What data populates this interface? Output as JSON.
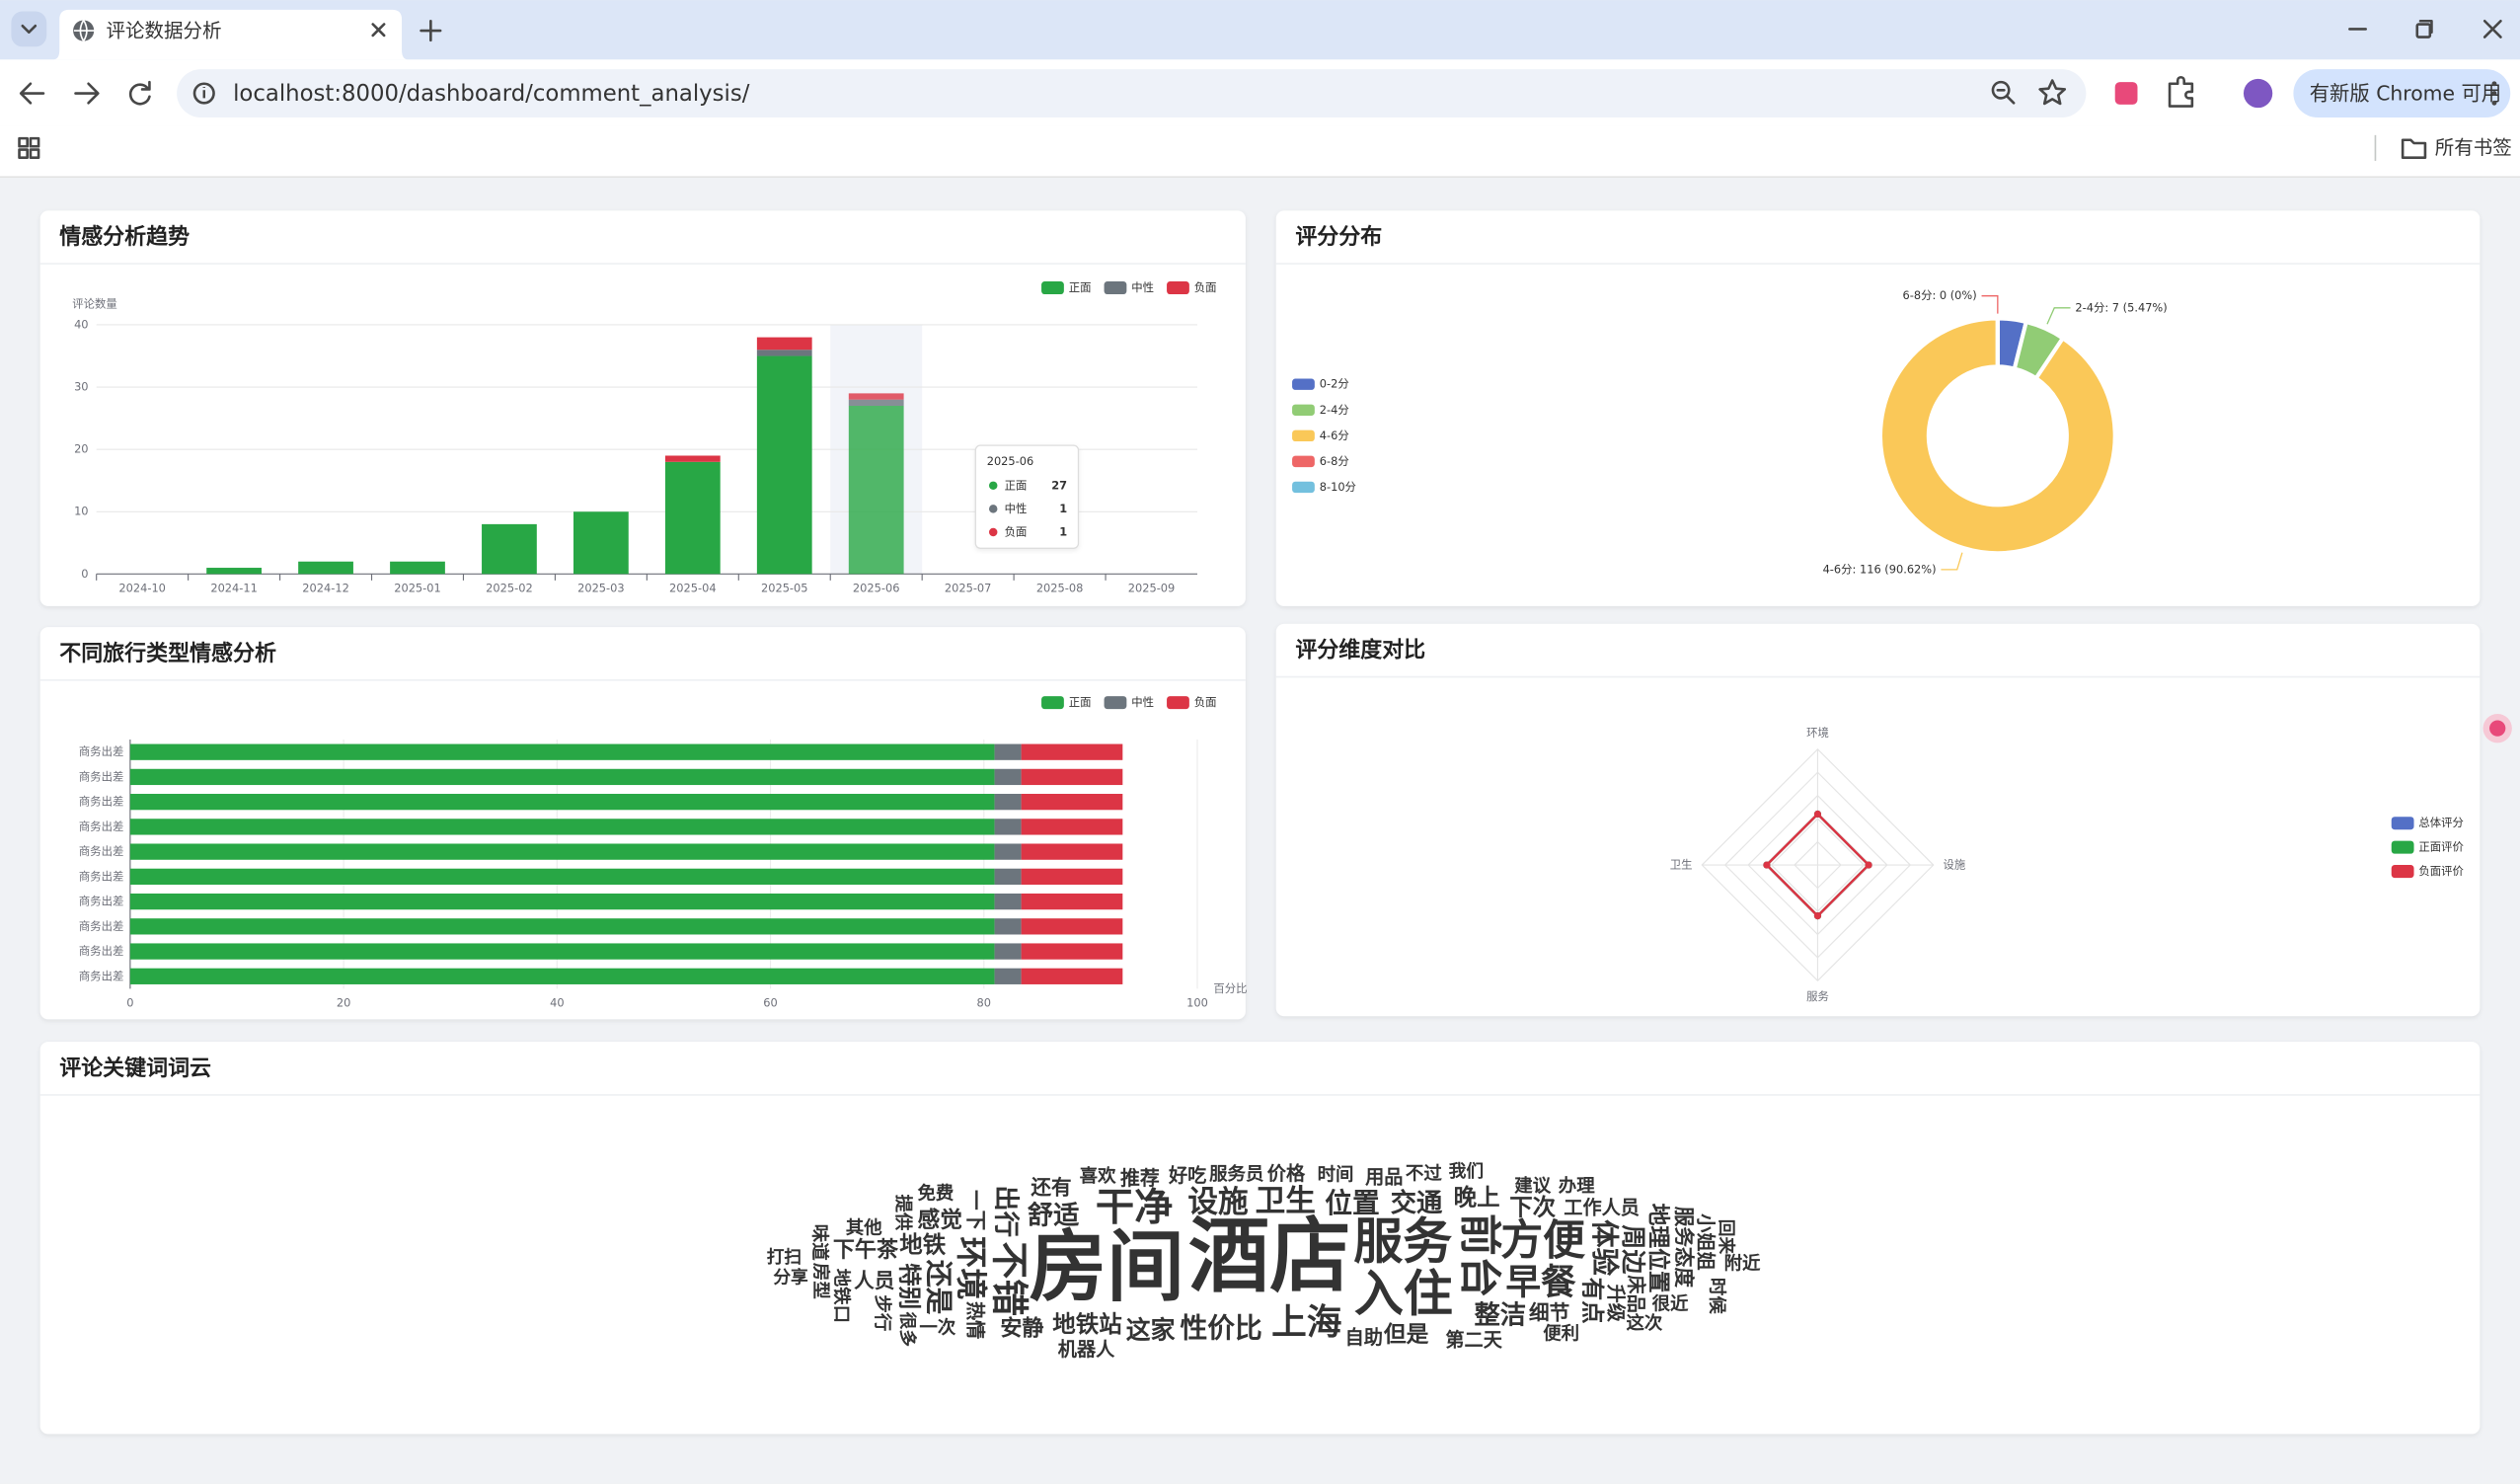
{
  "browser": {
    "tab_title": "评论数据分析",
    "url": "localhost:8000/dashboard/comment_analysis/",
    "update_button": "有新版 Chrome 可用",
    "bookmarks": "所有书签"
  },
  "chart_data": [
    {
      "type": "bar",
      "title": "情感分析趋势",
      "y_label": "评论数量",
      "categories": [
        "2024-10",
        "2024-11",
        "2024-12",
        "2025-01",
        "2025-02",
        "2025-03",
        "2025-04",
        "2025-05",
        "2025-06",
        "2025-07",
        "2025-08",
        "2025-09"
      ],
      "series": [
        {
          "name": "正面",
          "color": "#28a745",
          "values": [
            0,
            1,
            2,
            2,
            8,
            10,
            18,
            35,
            27,
            0,
            0,
            0
          ]
        },
        {
          "name": "中性",
          "color": "#6c757d",
          "values": [
            0,
            0,
            0,
            0,
            0,
            0,
            0,
            1,
            1,
            0,
            0,
            0
          ]
        },
        {
          "name": "负面",
          "color": "#dc3545",
          "values": [
            0,
            0,
            0,
            0,
            0,
            0,
            1,
            2,
            1,
            0,
            0,
            0
          ]
        }
      ],
      "ylim": [
        0,
        40
      ],
      "yticks": [
        0,
        10,
        20,
        30,
        40
      ],
      "stacked": true,
      "grid": true,
      "legend": "top-right"
    },
    {
      "type": "donut",
      "title": "评分分布",
      "categories": [
        "0-2分",
        "2-4分",
        "4-6分",
        "6-8分",
        "8-10分"
      ],
      "values": [
        5,
        7,
        116,
        0,
        0
      ],
      "value_labels": [
        null,
        "2-4分: 7 (5.47%)",
        "4-6分: 116 (90.62%)",
        "6-8分: 0 (0%)",
        null
      ],
      "colors": [
        "#5470c6",
        "#91cc75",
        "#fac858",
        "#ee6666",
        "#73c0de"
      ],
      "legend": "left"
    },
    {
      "type": "hbar",
      "title": "不同旅行类型情感分析",
      "x_label": "百分比",
      "categories": [
        "商务出差",
        "商务出差",
        "商务出差",
        "商务出差",
        "商务出差",
        "商务出差",
        "商务出差",
        "商务出差",
        "商务出差",
        "商务出差"
      ],
      "series": [
        {
          "name": "正面",
          "color": "#28a745",
          "values": [
            81,
            81,
            81,
            81,
            81,
            81,
            81,
            81,
            81,
            81
          ]
        },
        {
          "name": "中性",
          "color": "#6c757d",
          "values": [
            2.5,
            2.5,
            2.5,
            2.5,
            2.5,
            2.5,
            2.5,
            2.5,
            2.5,
            2.5
          ]
        },
        {
          "name": "负面",
          "color": "#dc3545",
          "values": [
            9.5,
            9.5,
            9.5,
            9.5,
            9.5,
            9.5,
            9.5,
            9.5,
            9.5,
            9.5
          ]
        }
      ],
      "xlim": [
        0,
        100
      ],
      "xticks": [
        0,
        20,
        40,
        60,
        80,
        100
      ],
      "stacked": true,
      "legend": "top-right"
    },
    {
      "type": "radar",
      "title": "评分维度对比",
      "indicators": [
        "环境",
        "设施",
        "服务",
        "卫生"
      ],
      "rlim": [
        0,
        5
      ],
      "series": [
        {
          "name": "总体评分",
          "color": "#5470c6",
          "values": [
            2.2,
            2.2,
            2.2,
            2.2
          ]
        },
        {
          "name": "正面评价",
          "color": "#28a745",
          "values": [
            2.2,
            2.2,
            2.2,
            2.2
          ]
        },
        {
          "name": "负面评价",
          "color": "#dc3545",
          "values": [
            2.2,
            2.2,
            2.2,
            2.2
          ]
        }
      ],
      "legend": "right"
    },
    {
      "type": "wordcloud",
      "title": "评论关键词词云",
      "words": [
        "酒店",
        "房间",
        "服务",
        "入住",
        "前台",
        "方便",
        "干净",
        "不错",
        "早餐",
        "上海",
        "环境",
        "设施",
        "卫生",
        "体验",
        "位置",
        "性价比",
        "还是",
        "舒适",
        "交通",
        "出行",
        "整洁",
        "这家",
        "周边",
        "地铁站",
        "地铁",
        "有点",
        "晚上",
        "下次",
        "特别",
        "但是",
        "感觉",
        "地理位置",
        "下午茶",
        "安静",
        "服务态度",
        "细节",
        "人员",
        "一下",
        "还有",
        "推荐",
        "床品",
        "自助",
        "好吃",
        "小姐姐",
        "服务员",
        "价格",
        "升级",
        "时间",
        "用品",
        "热情",
        "工作人员",
        "第二天",
        "地铁口",
        "其他",
        "喜欢",
        "提供",
        "不过",
        "建议",
        "步行",
        "很近",
        "便利",
        "房型",
        "机器人",
        "一次",
        "味道",
        "免费",
        "我们",
        "回来",
        "办理",
        "附近",
        "时候",
        "这次",
        "分享",
        "很多",
        "打扫"
      ],
      "weights": [
        100,
        95,
        55,
        55,
        45,
        45,
        40,
        38,
        35,
        35,
        30,
        28,
        28,
        25,
        24,
        24,
        24,
        22,
        22,
        22,
        22,
        20,
        20,
        18,
        18,
        18,
        18,
        18,
        18,
        17,
        17,
        17,
        16,
        16,
        14,
        14,
        14,
        14,
        14,
        13,
        12,
        12,
        12,
        12,
        11,
        12,
        12,
        11,
        12,
        12,
        12,
        12,
        11,
        11,
        11,
        11,
        11,
        11,
        11,
        11,
        11,
        11,
        12,
        11,
        11,
        11,
        10,
        10,
        11,
        11,
        11,
        11,
        10,
        10,
        10
      ],
      "palette": [
        "#1a237e",
        "#00897b",
        "#2e7d32",
        "#6a1b9a",
        "#827717",
        "#c62828",
        "#37474f",
        "#4527a0",
        "#ad1457",
        "#00695c",
        "#5d4037",
        "#283593",
        "#558b2f",
        "#0277bd"
      ]
    }
  ]
}
